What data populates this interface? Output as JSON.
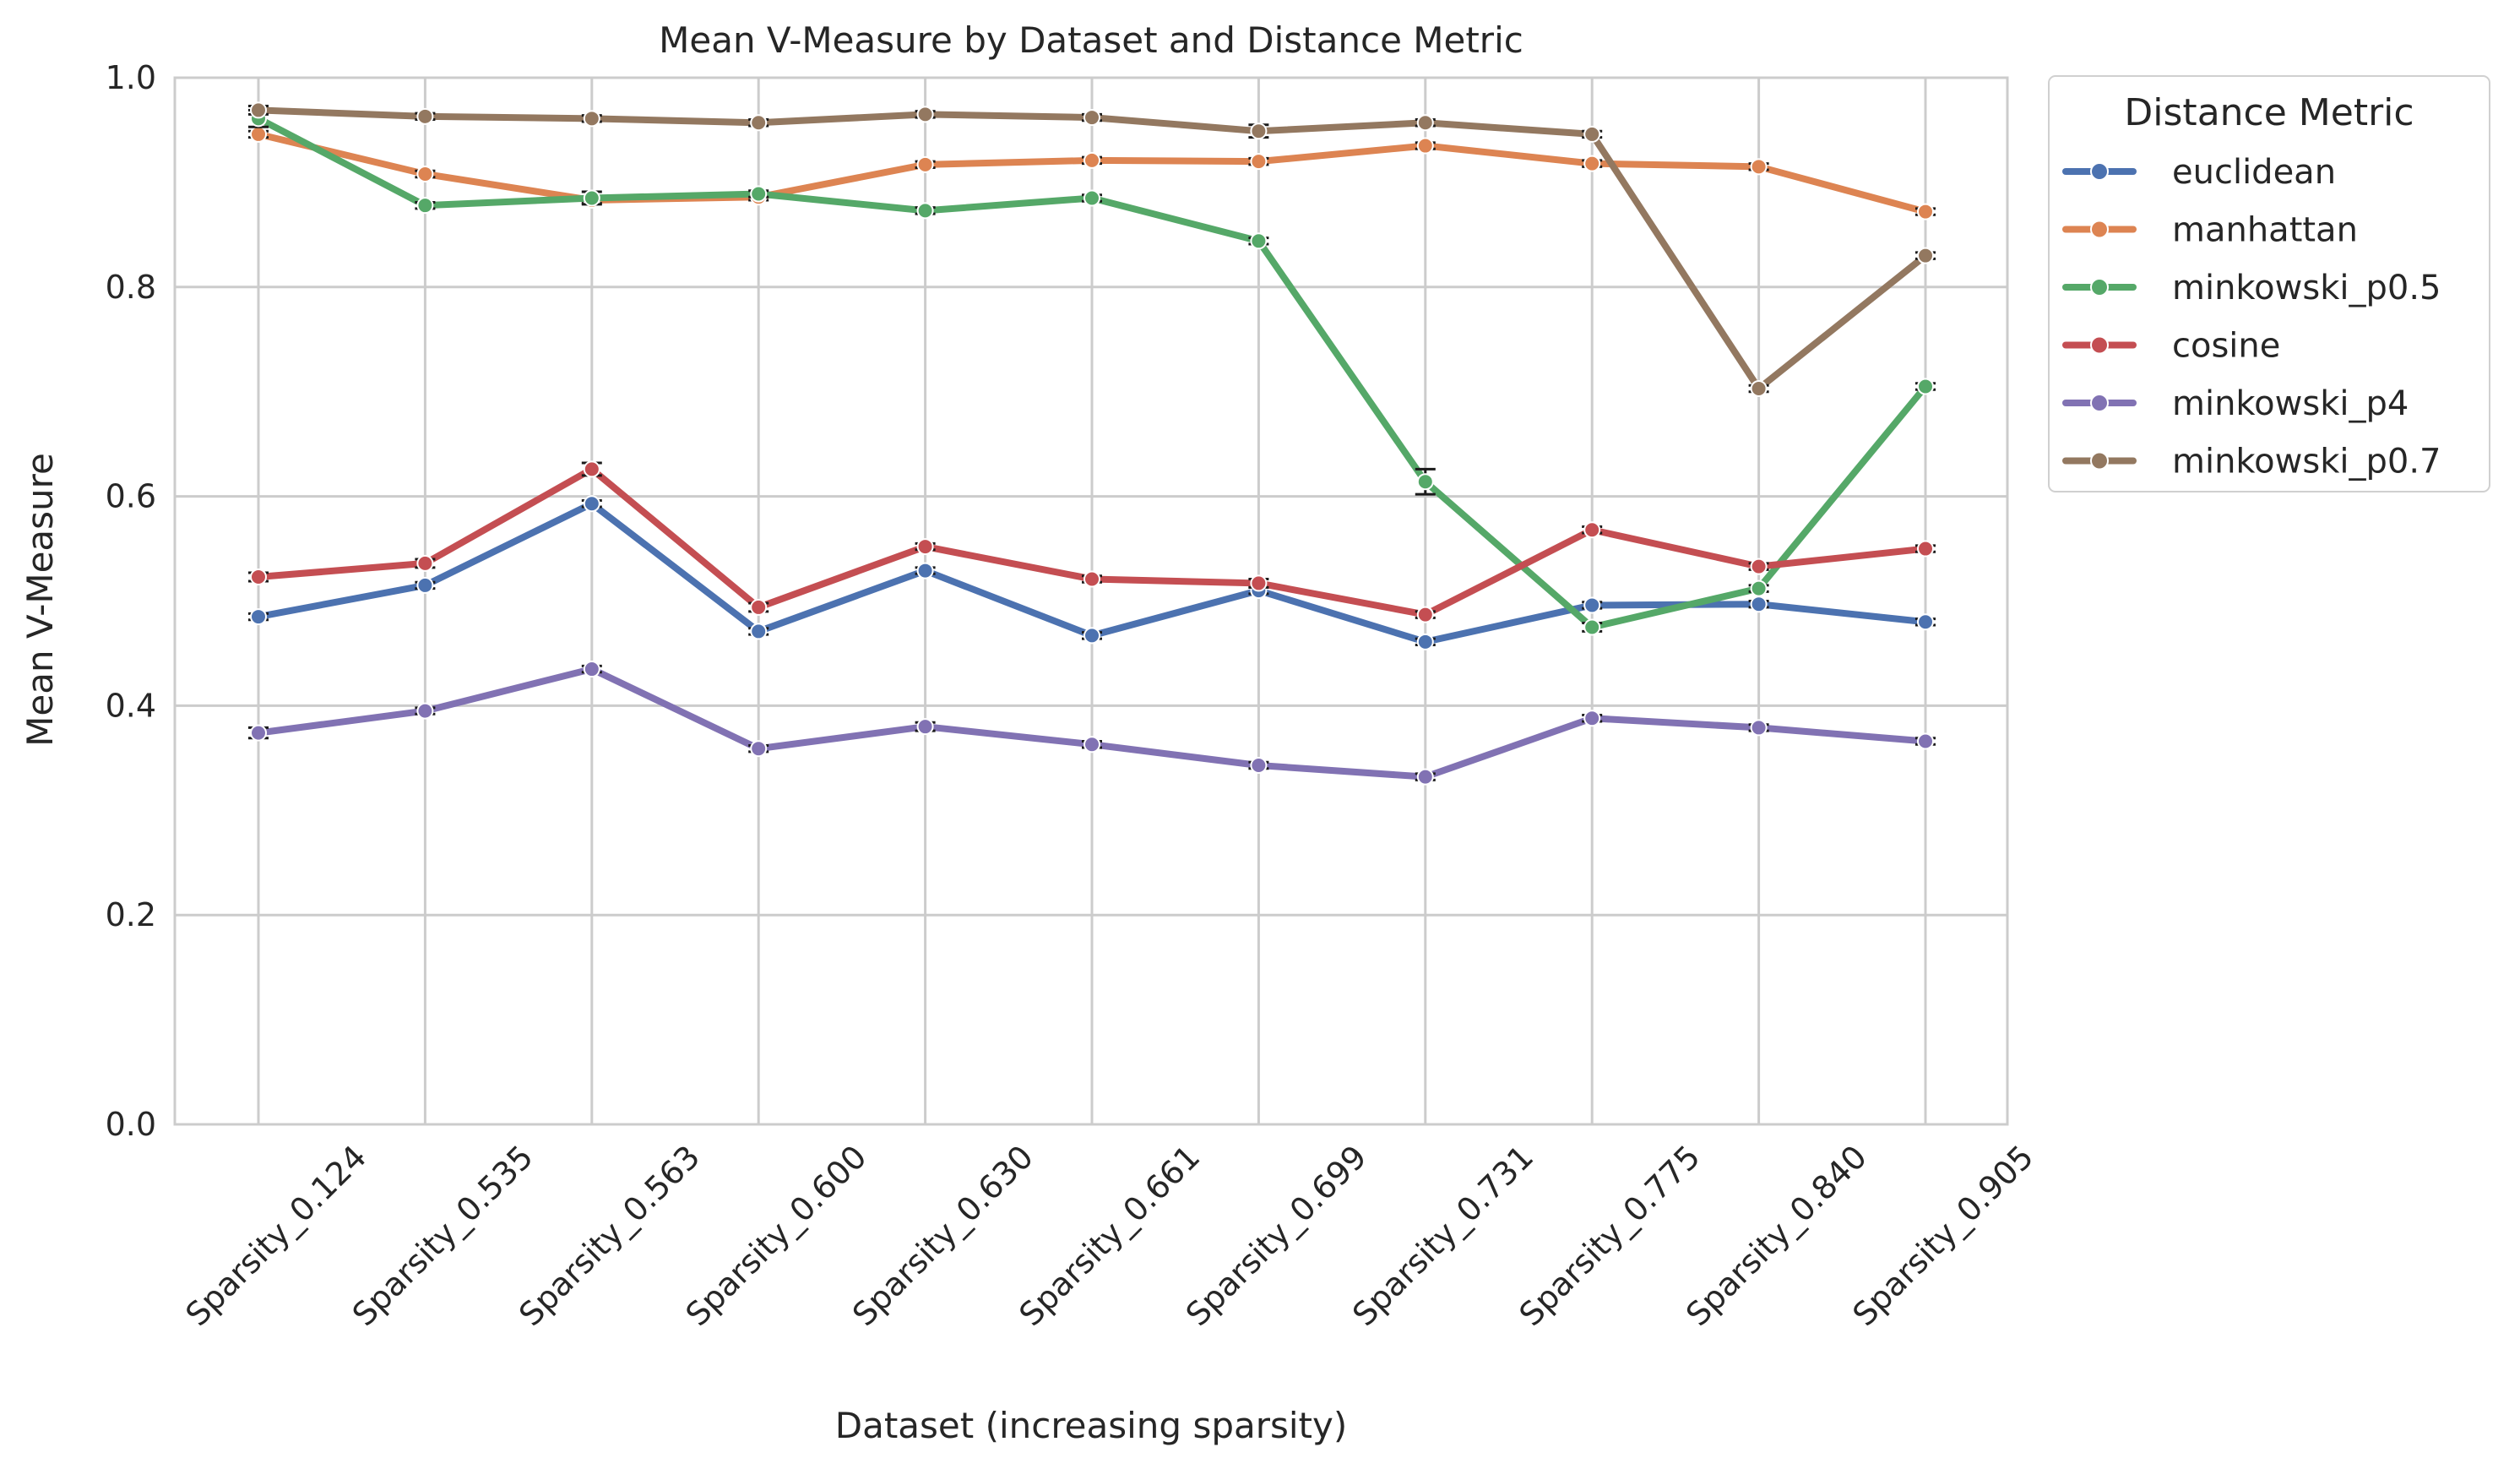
{
  "chart_data": {
    "type": "line",
    "title": "Mean V-Measure by Dataset and Distance Metric",
    "xlabel": "Dataset (increasing sparsity)",
    "ylabel": "Mean V-Measure",
    "ylim": [
      0.0,
      1.0
    ],
    "yticks": [
      "0.0",
      "0.2",
      "0.4",
      "0.6",
      "0.8",
      "1.0"
    ],
    "grid": true,
    "legend_position": "outside-right",
    "legend_title": "Distance Metric",
    "categories": [
      "Sparsity_0.124",
      "Sparsity_0.535",
      "Sparsity_0.563",
      "Sparsity_0.600",
      "Sparsity_0.630",
      "Sparsity_0.661",
      "Sparsity_0.699",
      "Sparsity_0.731",
      "Sparsity_0.775",
      "Sparsity_0.840",
      "Sparsity_0.905"
    ],
    "series": [
      {
        "name": "euclidean",
        "color": "#4c72b0",
        "values": [
          0.485,
          0.515,
          0.593,
          0.471,
          0.529,
          0.467,
          0.51,
          0.461,
          0.496,
          0.497,
          0.48
        ]
      },
      {
        "name": "manhattan",
        "color": "#dd8452",
        "values": [
          0.946,
          0.908,
          0.883,
          0.886,
          0.917,
          0.921,
          0.92,
          0.935,
          0.918,
          0.915,
          0.872
        ]
      },
      {
        "name": "minkowski_p0.5",
        "color": "#55a868",
        "values": [
          0.961,
          0.878,
          0.885,
          0.889,
          0.873,
          0.885,
          0.844,
          0.614,
          0.475,
          0.512,
          0.705
        ]
      },
      {
        "name": "cosine",
        "color": "#c44e52",
        "values": [
          0.523,
          0.536,
          0.626,
          0.494,
          0.552,
          0.521,
          0.517,
          0.487,
          0.568,
          0.533,
          0.55
        ]
      },
      {
        "name": "minkowski_p4",
        "color": "#8172b3",
        "values": [
          0.374,
          0.395,
          0.435,
          0.359,
          0.38,
          0.363,
          0.343,
          0.332,
          0.388,
          0.379,
          0.366
        ]
      },
      {
        "name": "minkowski_p0.7",
        "color": "#937860",
        "values": [
          0.969,
          0.963,
          0.961,
          0.957,
          0.965,
          0.962,
          0.949,
          0.957,
          0.946,
          0.703,
          0.83
        ]
      }
    ],
    "error_bars": {
      "euclidean": [
        0.003,
        0.003,
        0.003,
        0.003,
        0.003,
        0.003,
        0.003,
        0.003,
        0.003,
        0.003,
        0.003
      ],
      "manhattan": [
        0.003,
        0.003,
        0.003,
        0.003,
        0.003,
        0.003,
        0.003,
        0.003,
        0.003,
        0.003,
        0.003
      ],
      "minkowski_p0.5": [
        0.008,
        0.003,
        0.006,
        0.003,
        0.003,
        0.003,
        0.003,
        0.012,
        0.004,
        0.003,
        0.003
      ],
      "cosine": [
        0.004,
        0.004,
        0.006,
        0.004,
        0.003,
        0.003,
        0.004,
        0.003,
        0.003,
        0.003,
        0.003
      ],
      "minkowski_p4": [
        0.005,
        0.003,
        0.003,
        0.003,
        0.004,
        0.003,
        0.003,
        0.003,
        0.003,
        0.003,
        0.003
      ],
      "minkowski_p0.7": [
        0.004,
        0.003,
        0.003,
        0.003,
        0.003,
        0.003,
        0.006,
        0.003,
        0.003,
        0.003,
        0.003
      ]
    }
  }
}
